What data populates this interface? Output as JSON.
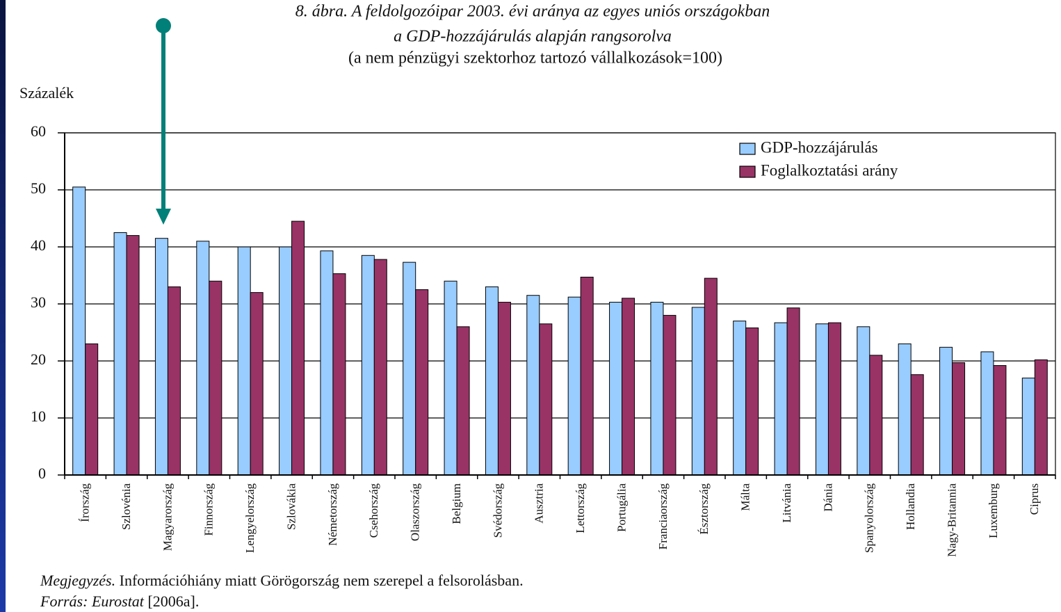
{
  "chart_data": {
    "type": "bar",
    "title": "8. ábra. A feldolgozóipar 2003. évi aránya az egyes uniós országokban",
    "subtitle": "a GDP-hozzájárulás alapján rangsorolva",
    "subtitle2": "(a nem pénzügyi szektorhoz tartozó vállalkozások=100)",
    "y_axis_label": "Százalék",
    "categories": [
      "Írország",
      "Szlovénia",
      "Magyarország",
      "Finnország",
      "Lengyelország",
      "Szlovákia",
      "Németország",
      "Csehország",
      "Olaszország",
      "Belgium",
      "Svédország",
      "Ausztria",
      "Lettország",
      "Portugália",
      "Franciaország",
      "Észtország",
      "Málta",
      "Litvánia",
      "Dánia",
      "Spanyolország",
      "Hollandia",
      "Nagy-Britannia",
      "Luxemburg",
      "Ciprus"
    ],
    "series": [
      {
        "name": "GDP-hozzájárulás",
        "color": "#99ccff",
        "values": [
          50.5,
          42.5,
          41.5,
          41,
          40,
          40,
          39.3,
          38.5,
          37.3,
          34,
          33,
          31.5,
          31.2,
          30.3,
          30.3,
          29.4,
          27,
          26.7,
          26.5,
          26,
          23,
          22.4,
          21.6,
          17
        ]
      },
      {
        "name": "Foglalkoztatási arány",
        "color": "#993366",
        "values": [
          23,
          42,
          33,
          34,
          32,
          44.5,
          35.3,
          37.8,
          32.5,
          26,
          30.3,
          26.5,
          34.7,
          31,
          28,
          34.5,
          25.8,
          29.3,
          26.7,
          21,
          17.6,
          19.7,
          19.2,
          20.2
        ]
      }
    ],
    "ylim": [
      0,
      60
    ],
    "yticks": [
      0,
      10,
      20,
      30,
      40,
      50,
      60
    ],
    "grid": true,
    "legend": "top-right"
  },
  "note": {
    "label": "Megjegyzés.",
    "text": "Információhiány miatt Görögország nem szerepel a felsorolásban."
  },
  "source": {
    "label": "Forrás:",
    "name": "Eurostat",
    "ref": "[2006a]."
  }
}
